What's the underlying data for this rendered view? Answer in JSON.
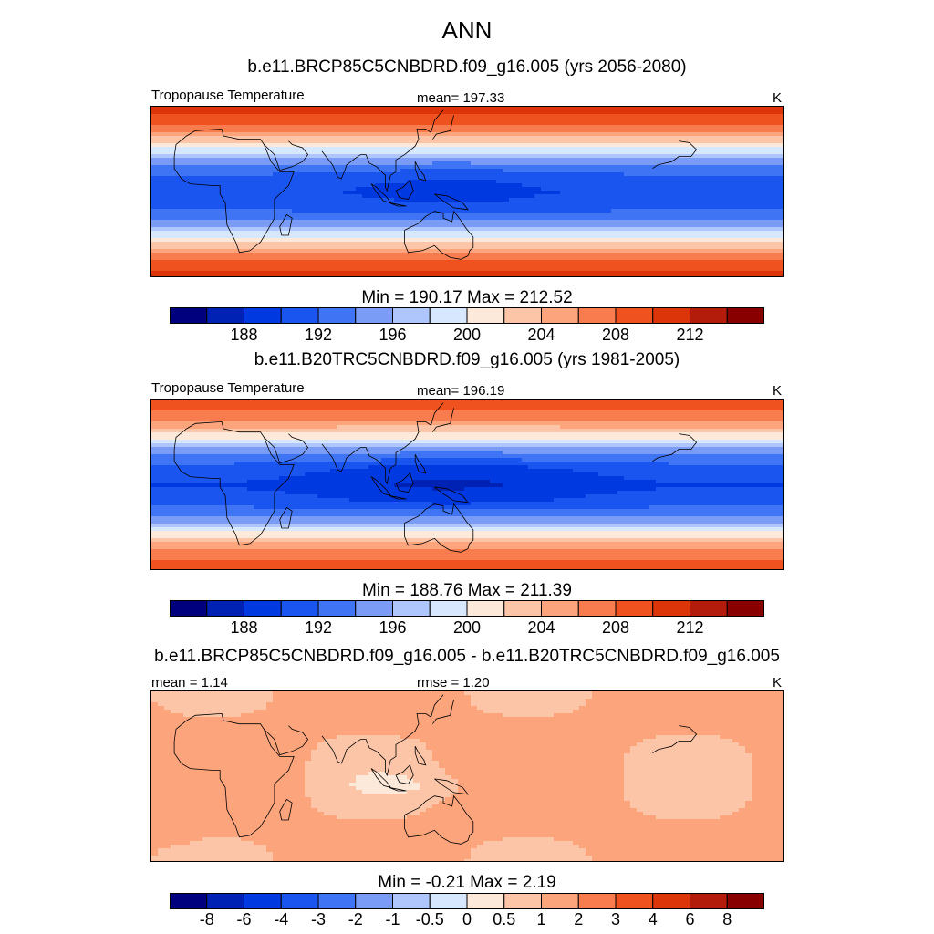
{
  "title": "ANN",
  "units": "K",
  "panels": [
    {
      "case": "b.e11.BRCP85C5CNBDRD.f09_g16.005 (yrs 2056-2080)",
      "var_label": "Tropopause Temperature",
      "stat_label": "mean= 197.33",
      "units": "K",
      "minmax": "Min = 190.17 Max = 212.52"
    },
    {
      "case": "b.e11.B20TRC5CNBDRD.f09_g16.005 (yrs 1981-2005)",
      "var_label": "Tropopause Temperature",
      "stat_label": "mean= 196.19",
      "units": "K",
      "minmax": "Min = 188.76 Max = 211.39"
    },
    {
      "case": "b.e11.BRCP85C5CNBDRD.f09_g16.005 - b.e11.B20TRC5CNBDRD.f09_g16.005",
      "var_label": "mean =   1.14",
      "stat_label": "rmse =   1.20",
      "units": "K",
      "minmax": "Min =  -0.21 Max =   2.19"
    }
  ],
  "chart_data": [
    {
      "type": "heatmap",
      "title": "b.e11.BRCP85C5CNBDRD.f09_g16.005 (yrs 2056-2080)",
      "variable": "Tropopause Temperature",
      "units": "K",
      "mean": 197.33,
      "min": 190.17,
      "max": 212.52,
      "lon_range": [
        -30,
        330
      ],
      "lat_range": [
        -50,
        50
      ],
      "zonal_profile_lat": [
        -50,
        -40,
        -30,
        -20,
        -10,
        0,
        10,
        20,
        30,
        40,
        50
      ],
      "zonal_profile_K": [
        211,
        208,
        203,
        196,
        192,
        191,
        192,
        196,
        203,
        208,
        211
      ],
      "levels": [
        186,
        188,
        190,
        192,
        194,
        196,
        198,
        200,
        202,
        204,
        206,
        208,
        210,
        212,
        214
      ],
      "colors": [
        "#00007f",
        "#0022b4",
        "#0039e0",
        "#1b55f0",
        "#3f74f4",
        "#7a9cf6",
        "#aec6fb",
        "#d7e7fd",
        "#fde9d9",
        "#fcc5a7",
        "#fca47c",
        "#f97c4f",
        "#f0521f",
        "#dc350a",
        "#b31c0a",
        "#880000"
      ],
      "tick_labels": [
        "188",
        "192",
        "196",
        "200",
        "204",
        "208",
        "212"
      ]
    },
    {
      "type": "heatmap",
      "title": "b.e11.B20TRC5CNBDRD.f09_g16.005 (yrs 1981-2005)",
      "variable": "Tropopause Temperature",
      "units": "K",
      "mean": 196.19,
      "min": 188.76,
      "max": 211.39,
      "lon_range": [
        -30,
        330
      ],
      "lat_range": [
        -50,
        50
      ],
      "zonal_profile_lat": [
        -50,
        -40,
        -30,
        -20,
        -10,
        0,
        10,
        20,
        30,
        40,
        50
      ],
      "zonal_profile_K": [
        210,
        207,
        202,
        195,
        191,
        190,
        191,
        195,
        202,
        207,
        210
      ],
      "levels": [
        186,
        188,
        190,
        192,
        194,
        196,
        198,
        200,
        202,
        204,
        206,
        208,
        210,
        212,
        214
      ],
      "colors": [
        "#00007f",
        "#0022b4",
        "#0039e0",
        "#1b55f0",
        "#3f74f4",
        "#7a9cf6",
        "#aec6fb",
        "#d7e7fd",
        "#fde9d9",
        "#fcc5a7",
        "#fca47c",
        "#f97c4f",
        "#f0521f",
        "#dc350a",
        "#b31c0a",
        "#880000"
      ],
      "tick_labels": [
        "188",
        "192",
        "196",
        "200",
        "204",
        "208",
        "212"
      ]
    },
    {
      "type": "heatmap",
      "title": "b.e11.BRCP85C5CNBDRD.f09_g16.005 - b.e11.B20TRC5CNBDRD.f09_g16.005",
      "units": "K",
      "mean": 1.14,
      "rmse": 1.2,
      "min": -0.21,
      "max": 2.19,
      "lon_range": [
        -30,
        330
      ],
      "lat_range": [
        -50,
        50
      ],
      "levels": [
        -8,
        -6,
        -4,
        -3,
        -2,
        -1,
        -0.5,
        0,
        0.5,
        1,
        2,
        3,
        4,
        6,
        8
      ],
      "colors": [
        "#00007f",
        "#0022b4",
        "#0039e0",
        "#1b55f0",
        "#3f74f4",
        "#7a9cf6",
        "#aec6fb",
        "#d7e7fd",
        "#fde9d9",
        "#fcc5a7",
        "#fca47c",
        "#f97c4f",
        "#f0521f",
        "#dc350a",
        "#b31c0a",
        "#880000"
      ],
      "tick_labels": [
        "-8",
        "-6",
        "-4",
        "-3",
        "-2",
        "-1",
        "-0.5",
        "0",
        "0.5",
        "1",
        "2",
        "3",
        "4",
        "6",
        "8"
      ]
    }
  ]
}
